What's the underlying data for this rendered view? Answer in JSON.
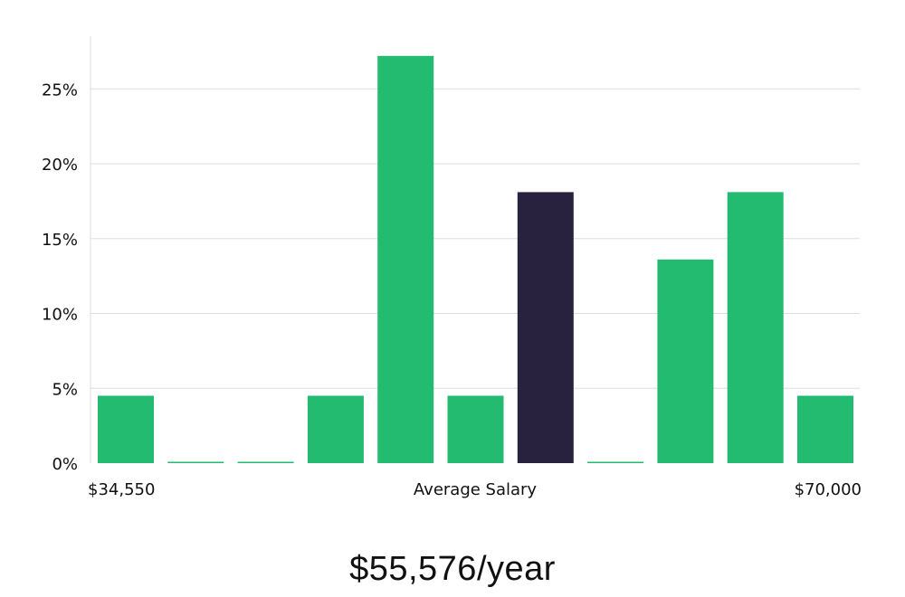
{
  "chart_data": {
    "type": "bar",
    "categories": [
      "bin-1",
      "bin-2",
      "bin-3",
      "bin-4",
      "bin-5",
      "bin-6",
      "bin-7",
      "bin-8",
      "bin-9",
      "bin-10",
      "bin-11"
    ],
    "values": [
      4.5,
      0,
      0,
      4.5,
      27.2,
      4.5,
      18.1,
      0,
      13.6,
      18.1,
      4.5
    ],
    "highlight_index": 6,
    "y_unit": "%",
    "ylim": [
      0,
      28.5
    ],
    "yticks": [
      0,
      5,
      10,
      15,
      20,
      25
    ],
    "ytick_labels": [
      "0%",
      "5%",
      "10%",
      "15%",
      "20%",
      "25%"
    ],
    "x_min_label": "$34,550",
    "x_max_label": "$70,000",
    "xlabel": "Average Salary",
    "grid": true,
    "colors": {
      "bar": "#22bb70",
      "highlight": "#29223f",
      "grid": "#dddddd",
      "axis": "#dddddd"
    }
  },
  "headline": "$55,576/year"
}
